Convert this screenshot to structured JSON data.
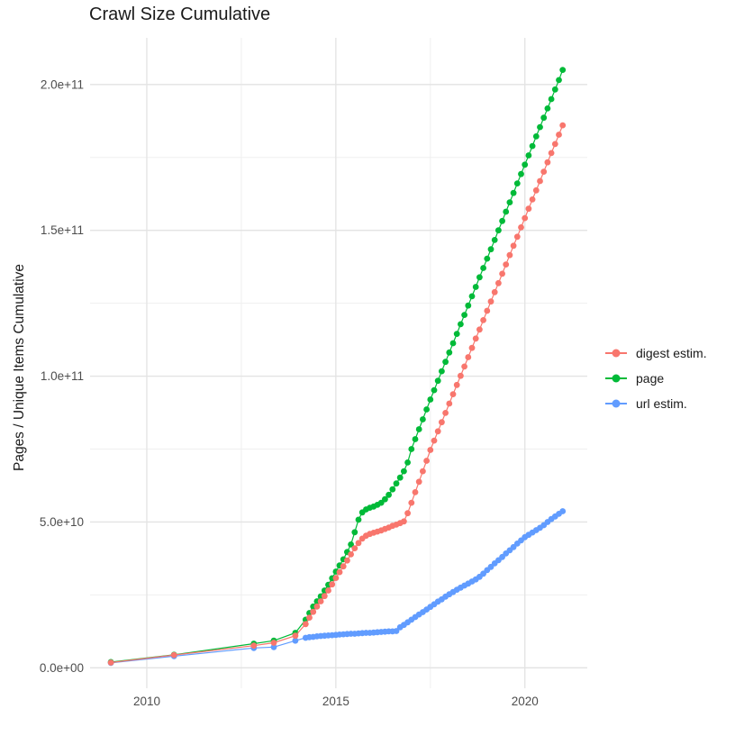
{
  "chart_data": {
    "type": "line",
    "title": "Crawl Size Cumulative",
    "xlabel": "",
    "ylabel": "Pages / Unique Items Cumulative",
    "legend_position": "right",
    "grid": "on",
    "x_range": [
      2008.5,
      2021.65
    ],
    "y_range_billions": [
      -7,
      216
    ],
    "x_ticks": [
      {
        "v": 2010,
        "label": "2010"
      },
      {
        "v": 2015,
        "label": "2015"
      },
      {
        "v": 2020,
        "label": "2020"
      }
    ],
    "y_ticks": [
      {
        "v": 0,
        "label": "0.0e+00"
      },
      {
        "v": 50,
        "label": "5.0e+10"
      },
      {
        "v": 100,
        "label": "1.0e+11"
      },
      {
        "v": 150,
        "label": "1.5e+11"
      },
      {
        "v": 200,
        "label": "2.0e+11"
      }
    ],
    "x_minor_gridlines": [
      2012.5,
      2017.5
    ],
    "y_minor_gridlines_billions": [
      25,
      75,
      125,
      175
    ],
    "value_unit": "1e9 (billions); y axis shows scientific notation",
    "colors": {
      "background": "#FFFFFF",
      "gridline_major": "#E3E3E3",
      "gridline_minor": "#EFEFEF",
      "tick_label": "#4D4D4D",
      "title_text": "#1A1A1A"
    },
    "series": [
      {
        "name": "digest estim.",
        "color": "#F8766D",
        "early_points": [
          [
            2009.05,
            1.8
          ],
          [
            2010.72,
            4.4
          ],
          [
            2012.83,
            7.6
          ],
          [
            2013.36,
            8.6
          ],
          [
            2013.93,
            11.0
          ]
        ],
        "monthly": {
          "start_year": 2014.2,
          "step_years": 0.1,
          "values_billions": [
            15.0,
            17.2,
            19.2,
            21.0,
            22.8,
            24.6,
            26.5,
            28.6,
            30.8,
            32.8,
            34.8,
            36.8,
            38.9,
            41.0,
            42.8,
            44.3,
            45.3,
            45.9,
            46.3,
            46.7,
            47.1,
            47.6,
            48.1,
            48.7,
            49.1,
            49.6,
            50.2,
            53.0,
            56.6,
            60.2,
            63.8,
            67.4,
            71.0,
            74.7,
            77.9,
            81.1,
            84.2,
            87.4,
            90.6,
            93.8,
            97.0,
            100.1,
            103.3,
            106.5,
            109.7,
            112.9,
            116.0,
            119.2,
            122.4,
            125.6,
            128.8,
            131.9,
            135.1,
            138.3,
            141.5,
            144.7,
            147.8,
            151.0,
            154.2,
            157.4,
            160.6,
            163.7,
            166.9,
            170.1,
            173.3,
            176.5,
            179.6,
            182.8,
            186.0
          ]
        }
      },
      {
        "name": "page",
        "color": "#00BA38",
        "early_points": [
          [
            2009.05,
            2.0
          ],
          [
            2010.72,
            4.5
          ],
          [
            2012.83,
            8.3
          ],
          [
            2013.36,
            9.3
          ],
          [
            2013.93,
            12.0
          ]
        ],
        "monthly": {
          "start_year": 2014.2,
          "step_years": 0.1,
          "values_billions": [
            16.5,
            18.8,
            21.0,
            22.8,
            24.5,
            26.5,
            28.5,
            30.7,
            33.0,
            35.1,
            37.2,
            39.7,
            42.3,
            46.5,
            50.8,
            53.3,
            54.3,
            54.9,
            55.3,
            55.9,
            56.6,
            57.8,
            59.3,
            61.2,
            63.2,
            65.2,
            67.4,
            70.4,
            75.0,
            78.4,
            81.8,
            85.2,
            88.6,
            92.0,
            95.2,
            98.4,
            101.7,
            104.9,
            108.1,
            111.3,
            114.5,
            117.8,
            121.0,
            124.2,
            127.4,
            130.6,
            133.9,
            137.1,
            140.3,
            143.5,
            146.7,
            150.0,
            153.2,
            156.4,
            159.6,
            162.8,
            166.1,
            169.3,
            172.5,
            175.7,
            178.9,
            182.2,
            185.4,
            188.6,
            191.8,
            195.0,
            198.3,
            201.5,
            205.0
          ]
        }
      },
      {
        "name": "url estim.",
        "color": "#619CFF",
        "early_points": [
          [
            2009.05,
            1.7
          ],
          [
            2010.72,
            4.0
          ],
          [
            2012.83,
            6.8
          ],
          [
            2013.36,
            7.1
          ],
          [
            2013.93,
            9.3
          ]
        ],
        "monthly": {
          "start_year": 2014.2,
          "step_years": 0.1,
          "values_billions": [
            10.3,
            10.5,
            10.6,
            10.8,
            10.9,
            11.0,
            11.1,
            11.2,
            11.3,
            11.4,
            11.5,
            11.6,
            11.7,
            11.7,
            11.8,
            11.9,
            12.0,
            12.0,
            12.1,
            12.2,
            12.3,
            12.4,
            12.5,
            12.5,
            12.6,
            13.9,
            14.7,
            15.6,
            16.5,
            17.4,
            18.3,
            19.1,
            20.0,
            20.9,
            21.8,
            22.7,
            23.5,
            24.4,
            25.2,
            26.0,
            26.8,
            27.5,
            28.2,
            28.9,
            29.6,
            30.3,
            31.2,
            32.3,
            33.5,
            34.6,
            35.8,
            36.9,
            38.0,
            39.2,
            40.3,
            41.4,
            42.6,
            43.7,
            44.8,
            45.6,
            46.4,
            47.2,
            48.0,
            48.9,
            50.0,
            51.0,
            51.9,
            52.8,
            53.7
          ]
        }
      }
    ]
  }
}
